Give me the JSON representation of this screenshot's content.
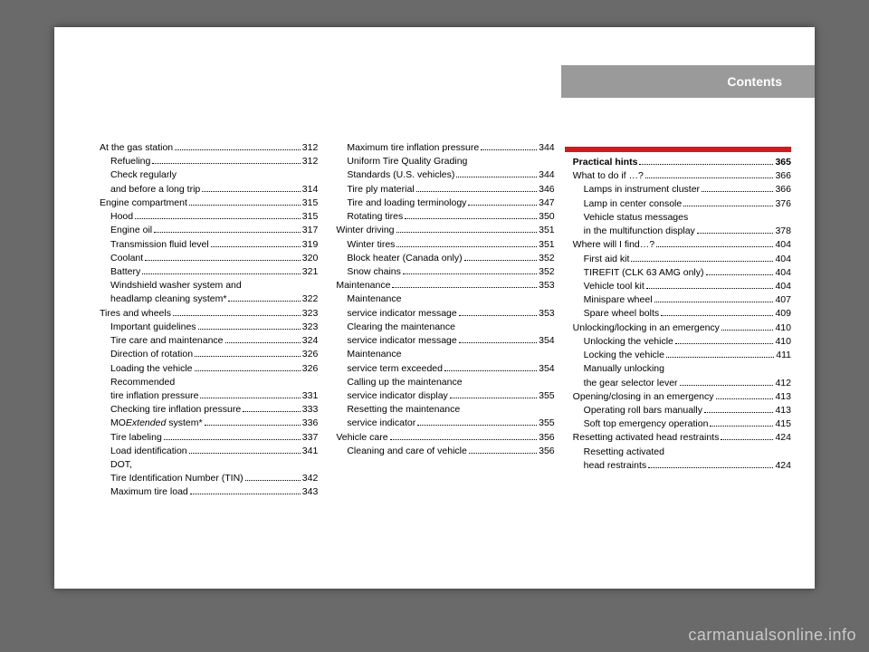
{
  "header": {
    "title": "Contents"
  },
  "watermark": "carmanualsonline.info",
  "columns": [
    [
      {
        "label": "At the gas station",
        "page": "312",
        "sub": false
      },
      {
        "label": "Refueling",
        "page": "312",
        "sub": true
      },
      {
        "label": "Check regularly",
        "page": "",
        "sub": true,
        "nodots": true
      },
      {
        "label": "and before a long trip",
        "page": "314",
        "sub": true
      },
      {
        "label": "Engine compartment",
        "page": "315",
        "sub": false
      },
      {
        "label": "Hood",
        "page": "315",
        "sub": true
      },
      {
        "label": "Engine oil",
        "page": "317",
        "sub": true
      },
      {
        "label": "Transmission fluid level",
        "page": "319",
        "sub": true
      },
      {
        "label": "Coolant",
        "page": "320",
        "sub": true
      },
      {
        "label": "Battery",
        "page": "321",
        "sub": true
      },
      {
        "label": "Windshield washer system and",
        "page": "",
        "sub": true,
        "nodots": true
      },
      {
        "label": "headlamp cleaning system*",
        "page": "322",
        "sub": true
      },
      {
        "label": "Tires and wheels",
        "page": "323",
        "sub": false
      },
      {
        "label": "Important guidelines",
        "page": "323",
        "sub": true
      },
      {
        "label": "Tire care and maintenance",
        "page": "324",
        "sub": true
      },
      {
        "label": "Direction of rotation",
        "page": "326",
        "sub": true
      },
      {
        "label": "Loading the vehicle",
        "page": "326",
        "sub": true
      },
      {
        "label": "Recommended",
        "page": "",
        "sub": true,
        "nodots": true
      },
      {
        "label": "tire inflation pressure",
        "page": "331",
        "sub": true
      },
      {
        "label": "Checking tire inflation pressure",
        "page": "333",
        "sub": true
      },
      {
        "label": "MO<i>Extended</i> system*",
        "page": "336",
        "sub": true,
        "html": true
      },
      {
        "label": "Tire labeling",
        "page": "337",
        "sub": true
      },
      {
        "label": "Load identification",
        "page": "341",
        "sub": true
      },
      {
        "label": "DOT,",
        "page": "",
        "sub": true,
        "nodots": true
      },
      {
        "label": "Tire Identification Number (TIN)",
        "page": "342",
        "sub": true
      },
      {
        "label": "Maximum tire load",
        "page": "343",
        "sub": true
      }
    ],
    [
      {
        "label": "Maximum tire inflation pressure",
        "page": "344",
        "sub": true
      },
      {
        "label": "Uniform Tire Quality Grading",
        "page": "",
        "sub": true,
        "nodots": true
      },
      {
        "label": "Standards (U.S. vehicles)",
        "page": "344",
        "sub": true
      },
      {
        "label": "Tire ply material",
        "page": "346",
        "sub": true
      },
      {
        "label": "Tire and loading terminology",
        "page": "347",
        "sub": true
      },
      {
        "label": "Rotating tires",
        "page": "350",
        "sub": true
      },
      {
        "label": "Winter driving",
        "page": "351",
        "sub": false
      },
      {
        "label": "Winter tires",
        "page": "351",
        "sub": true
      },
      {
        "label": "Block heater (Canada only)",
        "page": "352",
        "sub": true
      },
      {
        "label": "Snow chains",
        "page": "352",
        "sub": true
      },
      {
        "label": "Maintenance",
        "page": "353",
        "sub": false
      },
      {
        "label": "Maintenance",
        "page": "",
        "sub": true,
        "nodots": true
      },
      {
        "label": "service indicator message",
        "page": "353",
        "sub": true
      },
      {
        "label": "Clearing the maintenance",
        "page": "",
        "sub": true,
        "nodots": true
      },
      {
        "label": "service indicator message",
        "page": "354",
        "sub": true
      },
      {
        "label": "Maintenance",
        "page": "",
        "sub": true,
        "nodots": true
      },
      {
        "label": "service term exceeded",
        "page": "354",
        "sub": true
      },
      {
        "label": "Calling up the maintenance",
        "page": "",
        "sub": true,
        "nodots": true
      },
      {
        "label": "service indicator display",
        "page": "355",
        "sub": true
      },
      {
        "label": "Resetting the maintenance",
        "page": "",
        "sub": true,
        "nodots": true
      },
      {
        "label": "service indicator",
        "page": "355",
        "sub": true
      },
      {
        "label": "Vehicle care",
        "page": "356",
        "sub": false
      },
      {
        "label": "Cleaning and care of vehicle",
        "page": "356",
        "sub": true
      }
    ],
    [
      {
        "label": "Practical hints",
        "page": " 365",
        "sub": false,
        "bold": true
      },
      {
        "label": "What to do if …?",
        "page": " 366",
        "sub": false
      },
      {
        "label": "Lamps in instrument cluster",
        "page": " 366",
        "sub": true
      },
      {
        "label": "Lamp in center console",
        "page": " 376",
        "sub": true
      },
      {
        "label": "Vehicle status messages",
        "page": "",
        "sub": true,
        "nodots": true
      },
      {
        "label": "in the multifunction display",
        "page": " 378",
        "sub": true
      },
      {
        "label": "Where will I find…?",
        "page": " 404",
        "sub": false
      },
      {
        "label": "First aid kit",
        "page": " 404",
        "sub": true
      },
      {
        "label": "TIREFIT (CLK 63 AMG only)",
        "page": " 404",
        "sub": true
      },
      {
        "label": "Vehicle tool kit",
        "page": " 404",
        "sub": true
      },
      {
        "label": "Minispare wheel",
        "page": " 407",
        "sub": true
      },
      {
        "label": "Spare wheel bolts",
        "page": " 409",
        "sub": true
      },
      {
        "label": "Unlocking/locking in an emergency",
        "page": " 410",
        "sub": false
      },
      {
        "label": "Unlocking the vehicle",
        "page": " 410",
        "sub": true
      },
      {
        "label": "Locking the vehicle",
        "page": " 411",
        "sub": true
      },
      {
        "label": "Manually unlocking",
        "page": "",
        "sub": true,
        "nodots": true
      },
      {
        "label": "the gear selector lever",
        "page": " 412",
        "sub": true
      },
      {
        "label": "Opening/closing in an emergency",
        "page": " 413",
        "sub": false
      },
      {
        "label": "Operating roll bars manually",
        "page": " 413",
        "sub": true
      },
      {
        "label": "Soft top emergency operation",
        "page": " 415",
        "sub": true
      },
      {
        "label": "Resetting activated head restraints",
        "page": " 424",
        "sub": false
      },
      {
        "label": "Resetting activated",
        "page": "",
        "sub": true,
        "nodots": true
      },
      {
        "label": "head restraints",
        "page": " 424",
        "sub": true
      }
    ]
  ]
}
